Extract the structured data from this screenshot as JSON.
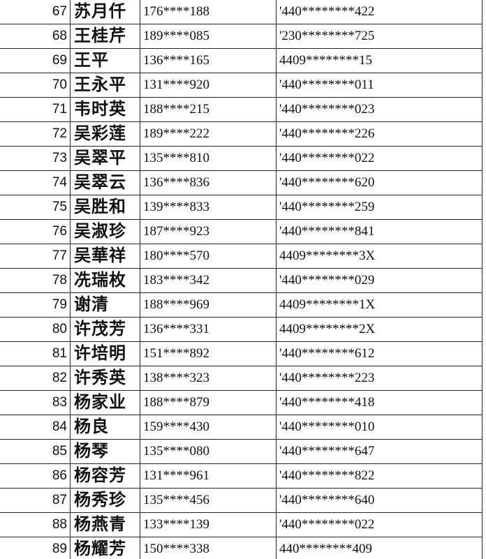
{
  "table": {
    "rows": [
      [
        "67",
        "苏月仟",
        "176****188",
        "'440********422"
      ],
      [
        "68",
        "王桂芹",
        "189****085",
        "'230********725"
      ],
      [
        "69",
        "王平",
        "136****165",
        "4409********15"
      ],
      [
        "70",
        "王永平",
        "131****920",
        "'440********011"
      ],
      [
        "71",
        "韦时英",
        "188****215",
        "'440********023"
      ],
      [
        "72",
        "吴彩莲",
        "189****222",
        "'440********226"
      ],
      [
        "73",
        "吴翠平",
        "135****810",
        "'440********022"
      ],
      [
        "74",
        "吴翠云",
        "136****836",
        "'440********620"
      ],
      [
        "75",
        "吴胜和",
        "139****833",
        "'440********259"
      ],
      [
        "76",
        "吴淑珍",
        "187****923",
        "'440********841"
      ],
      [
        "77",
        "吴華祥",
        "180****570",
        "4409********3X"
      ],
      [
        "78",
        "冼瑞枚",
        "183****342",
        "'440********029"
      ],
      [
        "79",
        "谢清",
        "188****969",
        "4409********1X"
      ],
      [
        "80",
        "许茂芳",
        "136****331",
        "4409********2X"
      ],
      [
        "81",
        "许培明",
        "151****892",
        "'440********612"
      ],
      [
        "82",
        "许秀英",
        "138****323",
        "'440********223"
      ],
      [
        "83",
        "杨家业",
        "188****879",
        "'440********418"
      ],
      [
        "84",
        "杨良",
        "159****430",
        "'440********010"
      ],
      [
        "85",
        "杨琴",
        "135****080",
        "'440********647"
      ],
      [
        "86",
        "杨容芳",
        "131****961",
        "'440********822"
      ],
      [
        "87",
        "杨秀珍",
        "135****456",
        "'440********640"
      ],
      [
        "88",
        "杨燕青",
        "133****139",
        "'440********022"
      ],
      [
        "89",
        "杨耀芳",
        "150****338",
        "440********409"
      ]
    ]
  }
}
